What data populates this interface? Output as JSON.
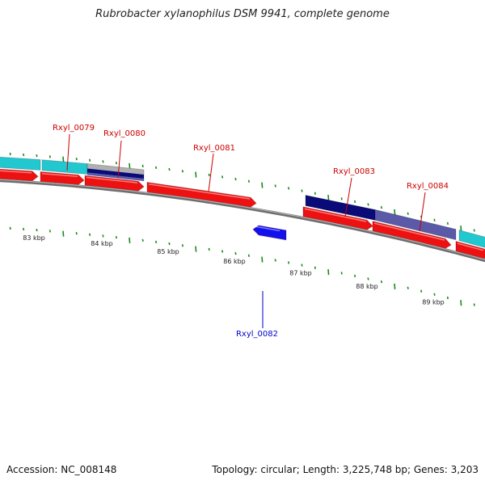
{
  "title": "Rubrobacter xylanophilus DSM 9941, complete genome",
  "footer": {
    "accession": "Accession: NC_008148",
    "summary": "Topology: circular; Length: 3,225,748 bp; Genes: 3,203"
  },
  "colors": {
    "forward_cds": "#ee1111",
    "reverse_cds": "#1111ee",
    "cyan_feature": "#22c8d0",
    "navy_feature": "#0a0a78",
    "slate_feature": "#5a5aa8",
    "backbone": "#808080",
    "tick": "#1a8a1a",
    "label_forward": "#cc0000",
    "label_reverse": "#0000cc"
  },
  "gene_labels": [
    {
      "text": "Rxyl_0079",
      "strand": "forward"
    },
    {
      "text": "Rxyl_0080",
      "strand": "forward"
    },
    {
      "text": "Rxyl_0081",
      "strand": "forward"
    },
    {
      "text": "Rxyl_0082",
      "strand": "reverse"
    },
    {
      "text": "Rxyl_0083",
      "strand": "forward"
    },
    {
      "text": "Rxyl_0084",
      "strand": "forward"
    }
  ],
  "scale_labels": [
    "83 kbp",
    "84 kbp",
    "85 kbp",
    "86 kbp",
    "87 kbp",
    "88 kbp",
    "89 kbp"
  ]
}
